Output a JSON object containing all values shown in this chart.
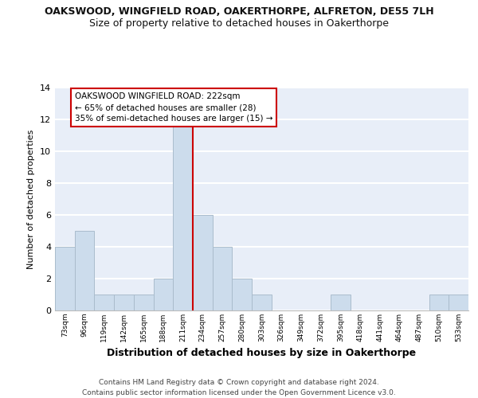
{
  "title": "OAKSWOOD, WINGFIELD ROAD, OAKERTHORPE, ALFRETON, DE55 7LH",
  "subtitle": "Size of property relative to detached houses in Oakerthorpe",
  "xlabel": "Distribution of detached houses by size in Oakerthorpe",
  "ylabel": "Number of detached properties",
  "categories": [
    "73sqm",
    "96sqm",
    "119sqm",
    "142sqm",
    "165sqm",
    "188sqm",
    "211sqm",
    "234sqm",
    "257sqm",
    "280sqm",
    "303sqm",
    "326sqm",
    "349sqm",
    "372sqm",
    "395sqm",
    "418sqm",
    "441sqm",
    "464sqm",
    "487sqm",
    "510sqm",
    "533sqm"
  ],
  "values": [
    4,
    5,
    1,
    1,
    1,
    2,
    12,
    6,
    4,
    2,
    1,
    0,
    0,
    0,
    1,
    0,
    0,
    0,
    0,
    1,
    1
  ],
  "bar_color": "#ccdcec",
  "bar_edge_color": "#aabccc",
  "vline_x_index": 6,
  "vline_color": "#cc0000",
  "annotation_text": "OAKSWOOD WINGFIELD ROAD: 222sqm\n← 65% of detached houses are smaller (28)\n35% of semi-detached houses are larger (15) →",
  "annotation_box_color": "#ffffff",
  "annotation_box_edge": "#cc0000",
  "ylim": [
    0,
    14
  ],
  "yticks": [
    0,
    2,
    4,
    6,
    8,
    10,
    12,
    14
  ],
  "background_color": "#e8eef8",
  "grid_color": "#ffffff",
  "footer": "Contains HM Land Registry data © Crown copyright and database right 2024.\nContains public sector information licensed under the Open Government Licence v3.0.",
  "title_fontsize": 9,
  "subtitle_fontsize": 9,
  "xlabel_fontsize": 9,
  "ylabel_fontsize": 8
}
